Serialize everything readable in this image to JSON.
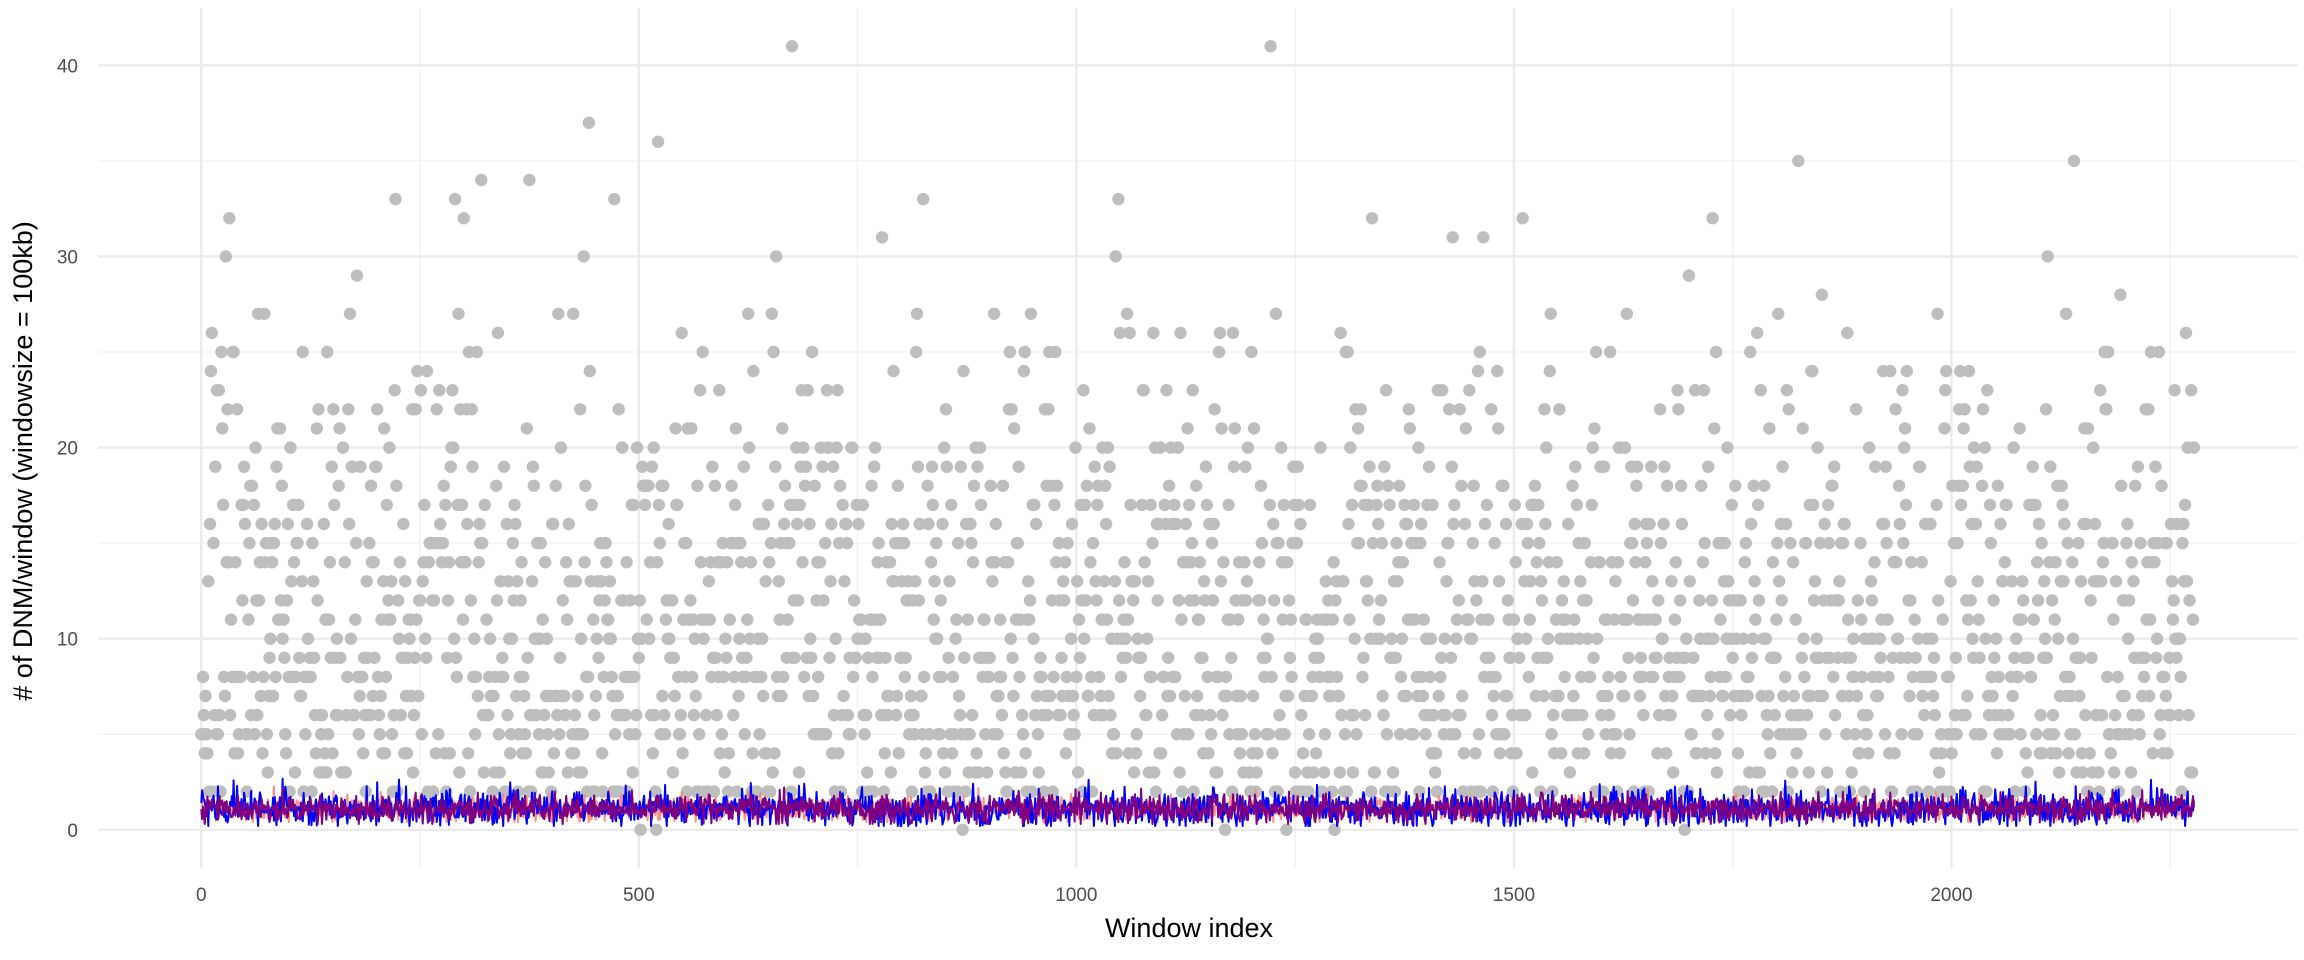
{
  "chart_data": {
    "type": "scatter",
    "title": "",
    "xlabel": "Window index",
    "ylabel": "# of DNM/window (windowsize = 100kb)",
    "xlim": [
      -118,
      2396
    ],
    "ylim": [
      -2.0,
      43.0
    ],
    "x_ticks": [
      0,
      500,
      1000,
      1500,
      2000
    ],
    "x_tick_labels": [
      "0",
      "500",
      "1000",
      "1500",
      "2000"
    ],
    "y_ticks": [
      0,
      10,
      20,
      30,
      40
    ],
    "y_tick_labels": [
      "0",
      "10",
      "20",
      "30",
      "40"
    ],
    "grid": true,
    "legend": "none",
    "n_windows": 2278,
    "series": [
      {
        "kind": "points",
        "color": "#bebebe",
        "notable_points": [
          {
            "x": 0,
            "y": 5
          },
          {
            "x": 3,
            "y": 6
          },
          {
            "x": 8,
            "y": 13
          },
          {
            "x": 12,
            "y": 26
          },
          {
            "x": 18,
            "y": 23
          },
          {
            "x": 23,
            "y": 25
          },
          {
            "x": 28,
            "y": 30
          },
          {
            "x": 32,
            "y": 32
          },
          {
            "x": 36,
            "y": 25
          },
          {
            "x": 50,
            "y": 16
          },
          {
            "x": 65,
            "y": 27
          },
          {
            "x": 170,
            "y": 27
          },
          {
            "x": 178,
            "y": 29
          },
          {
            "x": 222,
            "y": 33
          },
          {
            "x": 245,
            "y": 22
          },
          {
            "x": 290,
            "y": 33
          },
          {
            "x": 300,
            "y": 32
          },
          {
            "x": 320,
            "y": 34
          },
          {
            "x": 375,
            "y": 34
          },
          {
            "x": 437,
            "y": 30
          },
          {
            "x": 443,
            "y": 37
          },
          {
            "x": 472,
            "y": 33
          },
          {
            "x": 522,
            "y": 36
          },
          {
            "x": 657,
            "y": 30
          },
          {
            "x": 675,
            "y": 41
          },
          {
            "x": 778,
            "y": 31
          },
          {
            "x": 825,
            "y": 33
          },
          {
            "x": 1045,
            "y": 30
          },
          {
            "x": 1048,
            "y": 33
          },
          {
            "x": 1222,
            "y": 41
          },
          {
            "x": 1295,
            "y": 31
          },
          {
            "x": 1338,
            "y": 32
          },
          {
            "x": 1430,
            "y": 31
          },
          {
            "x": 1465,
            "y": 31
          },
          {
            "x": 1510,
            "y": 32
          },
          {
            "x": 1700,
            "y": 29
          },
          {
            "x": 1727,
            "y": 32
          },
          {
            "x": 1825,
            "y": 35
          },
          {
            "x": 1852,
            "y": 28
          },
          {
            "x": 2110,
            "y": 30
          },
          {
            "x": 2140,
            "y": 35
          },
          {
            "x": 2193,
            "y": 28
          },
          {
            "x": 2268,
            "y": 26
          },
          {
            "x": 502,
            "y": 0
          },
          {
            "x": 520,
            "y": 0
          },
          {
            "x": 870,
            "y": 0
          },
          {
            "x": 1170,
            "y": 0
          },
          {
            "x": 1240,
            "y": 0
          },
          {
            "x": 1295,
            "y": 0
          },
          {
            "x": 1695,
            "y": 0
          }
        ]
      },
      {
        "kind": "line",
        "color": "#fa8072",
        "y_range": [
          0.4,
          2.4
        ],
        "mean": 1.1
      },
      {
        "kind": "line",
        "color": "#0000ff",
        "y_range": [
          0.2,
          3.0
        ],
        "mean": 1.1
      },
      {
        "kind": "line",
        "color": "#800080",
        "y_range": [
          0.3,
          2.5
        ],
        "mean": 1.1
      }
    ]
  }
}
